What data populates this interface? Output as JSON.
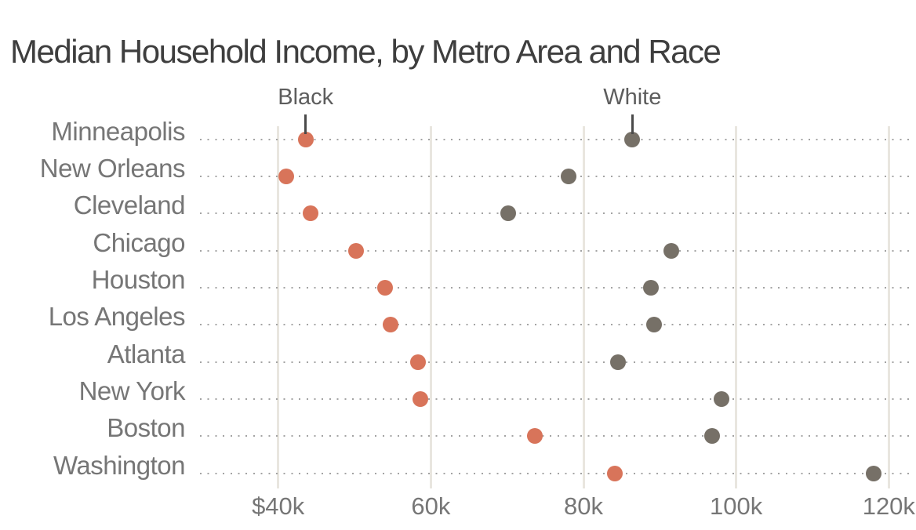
{
  "header": {
    "title": "Median Household Income, by Metro Area and Race"
  },
  "chart_data": {
    "type": "scatter",
    "variant": "dot-plot",
    "title": "Median Household Income, by Metro Area and Race",
    "xlabel": "",
    "ylabel": "",
    "categories": [
      "Minneapolis",
      "New Orleans",
      "Cleveland",
      "Chicago",
      "Houston",
      "Los Angeles",
      "Atlanta",
      "New York",
      "Boston",
      "Washington"
    ],
    "series": [
      {
        "name": "Black",
        "color": "#d8745a",
        "values": [
          43600,
          41100,
          44200,
          50200,
          54000,
          54700,
          58300,
          58600,
          73600,
          84100
        ]
      },
      {
        "name": "White",
        "color": "#767067",
        "values": [
          86400,
          78000,
          70100,
          91500,
          88800,
          89200,
          84500,
          98100,
          96800,
          118000
        ]
      }
    ],
    "x_axis": {
      "unit": "USD",
      "tick_labels": [
        "$40k",
        "60k",
        "80k",
        "100k",
        "120k"
      ],
      "tick_values": [
        40000,
        60000,
        80000,
        100000,
        120000
      ],
      "range": [
        30000,
        123500
      ],
      "grid": true
    },
    "y_axis": {
      "grid": false,
      "row_guides": "dotted"
    },
    "legend": {
      "position": "top",
      "style": "direct-labels-with-leader-lines",
      "entries": [
        {
          "label": "Black",
          "anchor_category": "Minneapolis"
        },
        {
          "label": "White",
          "anchor_category": "Minneapolis"
        }
      ]
    },
    "colors": {
      "background": "#ffffff",
      "title_text": "#3e3e3e",
      "axis_text": "#767676",
      "legend_text": "#5d5d5d",
      "gridline": "#e9e6df",
      "row_guide": "#a3a3a3",
      "leader_line": "#4a4a4a"
    }
  }
}
